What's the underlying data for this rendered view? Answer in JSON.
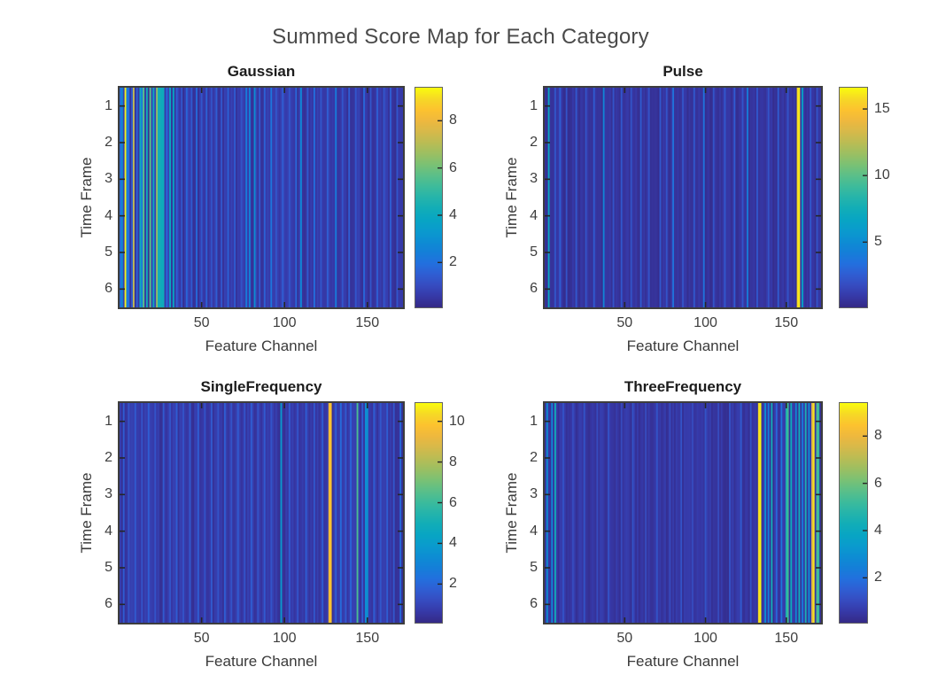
{
  "figure": {
    "title": "Summed Score Map for Each Category",
    "background": "#ffffff",
    "title_color": "#4a4a4a",
    "axis_color": "#3d3d3d",
    "tick_color": "#3e3e3e"
  },
  "axes": {
    "xlabel": "Feature Channel",
    "ylabel": "Time Frame",
    "x_ticks": [
      50,
      100,
      150
    ],
    "y_ticks": [
      1,
      2,
      3,
      4,
      5,
      6
    ],
    "n_channels": 171,
    "n_frames": 6
  },
  "colormap": {
    "name": "parula",
    "stops": [
      [
        0.0,
        "#352a87"
      ],
      [
        0.05,
        "#3639a8"
      ],
      [
        0.1,
        "#364cc0"
      ],
      [
        0.15,
        "#2f5ed3"
      ],
      [
        0.2,
        "#2270de"
      ],
      [
        0.25,
        "#147fd8"
      ],
      [
        0.3,
        "#0d8dd3"
      ],
      [
        0.35,
        "#0a9bcd"
      ],
      [
        0.4,
        "#08a5c3"
      ],
      [
        0.45,
        "#12adb7"
      ],
      [
        0.5,
        "#25b4ab"
      ],
      [
        0.55,
        "#3dbb9b"
      ],
      [
        0.6,
        "#5abf89"
      ],
      [
        0.65,
        "#7ac174"
      ],
      [
        0.7,
        "#9bbf62"
      ],
      [
        0.75,
        "#babc54"
      ],
      [
        0.8,
        "#d6b94a"
      ],
      [
        0.85,
        "#eeb83e"
      ],
      [
        0.9,
        "#fcc22f"
      ],
      [
        0.95,
        "#f6d826"
      ],
      [
        1.0,
        "#f9fb0e"
      ]
    ]
  },
  "chart_data": [
    {
      "type": "heatmap",
      "title": "Gaussian",
      "xlabel": "Feature Channel",
      "ylabel": "Time Frame",
      "x_range": [
        1,
        171
      ],
      "y_range": [
        1,
        6
      ],
      "colorbar_ticks": [
        2,
        4,
        6,
        8
      ],
      "vmin": 0.1,
      "vmax": 9.4,
      "baseline": 0.45,
      "texture": 0.55,
      "stripes": [
        [
          1,
          1.8
        ],
        [
          2,
          2.8
        ],
        [
          4,
          9.2
        ],
        [
          5,
          2.4
        ],
        [
          6,
          1.9
        ],
        [
          8,
          1.4
        ],
        [
          9,
          7.2
        ],
        [
          11,
          1.6
        ],
        [
          13,
          4.1
        ],
        [
          14,
          2.2
        ],
        [
          15,
          5.7
        ],
        [
          17,
          4.2
        ],
        [
          19,
          5.8
        ],
        [
          21,
          4.0
        ],
        [
          23,
          6.5
        ],
        [
          24,
          4.2
        ],
        [
          25,
          4.3
        ],
        [
          26,
          4.1
        ],
        [
          27,
          4.2
        ],
        [
          29,
          1.8
        ],
        [
          31,
          3.9
        ],
        [
          33,
          3.8
        ],
        [
          35,
          1.6
        ],
        [
          38,
          1.3
        ],
        [
          41,
          1.7
        ],
        [
          44,
          1.4
        ],
        [
          47,
          1.8
        ],
        [
          50,
          1.3
        ],
        [
          53,
          1.6
        ],
        [
          56,
          1.2
        ],
        [
          59,
          1.5
        ],
        [
          62,
          1.3
        ],
        [
          66,
          1.6
        ],
        [
          70,
          1.4
        ],
        [
          74,
          1.2
        ],
        [
          77,
          2.3
        ],
        [
          79,
          2.5
        ],
        [
          82,
          2.9
        ],
        [
          85,
          1.4
        ],
        [
          88,
          1.6
        ],
        [
          92,
          2.1
        ],
        [
          95,
          1.3
        ],
        [
          99,
          1.5
        ],
        [
          103,
          1.3
        ],
        [
          107,
          1.7
        ],
        [
          110,
          2.7
        ],
        [
          114,
          1.4
        ],
        [
          118,
          1.9
        ],
        [
          122,
          1.3
        ],
        [
          126,
          1.5
        ],
        [
          131,
          2.3
        ],
        [
          135,
          1.3
        ],
        [
          139,
          1.5
        ],
        [
          143,
          1.3
        ],
        [
          148,
          1.7
        ],
        [
          152,
          1.3
        ],
        [
          156,
          1.5
        ],
        [
          160,
          1.3
        ],
        [
          164,
          1.5
        ],
        [
          168,
          1.3
        ]
      ]
    },
    {
      "type": "heatmap",
      "title": "Pulse",
      "xlabel": "Feature Channel",
      "ylabel": "Time Frame",
      "x_range": [
        1,
        171
      ],
      "y_range": [
        1,
        6
      ],
      "colorbar_ticks": [
        5,
        10,
        15
      ],
      "vmin": 0.1,
      "vmax": 16.6,
      "baseline": 0.5,
      "texture": 0.7,
      "stripes": [
        [
          3,
          7.0
        ],
        [
          7,
          2.2
        ],
        [
          10,
          2.6
        ],
        [
          14,
          2.1
        ],
        [
          20,
          2.3
        ],
        [
          26,
          2.1
        ],
        [
          31,
          2.5
        ],
        [
          37,
          4.6
        ],
        [
          43,
          2.1
        ],
        [
          48,
          2.3
        ],
        [
          54,
          2.1
        ],
        [
          60,
          2.5
        ],
        [
          65,
          2.1
        ],
        [
          72,
          2.3
        ],
        [
          76,
          2.1
        ],
        [
          80,
          3.6
        ],
        [
          86,
          2.1
        ],
        [
          93,
          2.3
        ],
        [
          99,
          3.6
        ],
        [
          105,
          2.1
        ],
        [
          112,
          2.3
        ],
        [
          118,
          2.5
        ],
        [
          123,
          2.2
        ],
        [
          126,
          4.1
        ],
        [
          132,
          2.3
        ],
        [
          139,
          2.1
        ],
        [
          145,
          2.5
        ],
        [
          151,
          2.1
        ],
        [
          157,
          15.8
        ],
        [
          158,
          16.2
        ],
        [
          160,
          6.6
        ],
        [
          165,
          2.3
        ],
        [
          169,
          2.1
        ]
      ]
    },
    {
      "type": "heatmap",
      "title": "SingleFrequency",
      "xlabel": "Feature Channel",
      "ylabel": "Time Frame",
      "x_range": [
        1,
        171
      ],
      "y_range": [
        1,
        6
      ],
      "colorbar_ticks": [
        2,
        4,
        6,
        8,
        10
      ],
      "vmin": 0.1,
      "vmax": 10.9,
      "baseline": 0.5,
      "texture": 0.6,
      "stripes": [
        [
          3,
          1.7
        ],
        [
          6,
          1.4
        ],
        [
          10,
          1.6
        ],
        [
          14,
          1.4
        ],
        [
          18,
          1.7
        ],
        [
          22,
          1.4
        ],
        [
          27,
          1.6
        ],
        [
          31,
          1.4
        ],
        [
          35,
          1.7
        ],
        [
          39,
          1.4
        ],
        [
          43,
          1.6
        ],
        [
          48,
          1.7
        ],
        [
          52,
          1.4
        ],
        [
          56,
          1.6
        ],
        [
          60,
          1.4
        ],
        [
          64,
          1.7
        ],
        [
          68,
          1.4
        ],
        [
          72,
          1.6
        ],
        [
          76,
          1.4
        ],
        [
          80,
          1.7
        ],
        [
          84,
          1.4
        ],
        [
          88,
          1.6
        ],
        [
          92,
          1.4
        ],
        [
          98,
          3.9
        ],
        [
          103,
          1.6
        ],
        [
          108,
          1.4
        ],
        [
          113,
          1.7
        ],
        [
          118,
          1.5
        ],
        [
          123,
          1.7
        ],
        [
          127,
          9.5
        ],
        [
          128,
          9.9
        ],
        [
          131,
          1.7
        ],
        [
          134,
          2.1
        ],
        [
          137,
          1.6
        ],
        [
          140,
          1.9
        ],
        [
          144,
          6.3
        ],
        [
          147,
          1.7
        ],
        [
          149,
          3.3
        ],
        [
          150,
          3.5
        ],
        [
          154,
          1.7
        ],
        [
          158,
          1.5
        ],
        [
          162,
          1.7
        ],
        [
          166,
          1.5
        ],
        [
          170,
          2.1
        ]
      ]
    },
    {
      "type": "heatmap",
      "title": "ThreeFrequency",
      "xlabel": "Feature Channel",
      "ylabel": "Time Frame",
      "x_range": [
        1,
        171
      ],
      "y_range": [
        1,
        6
      ],
      "colorbar_ticks": [
        2,
        4,
        6,
        8
      ],
      "vmin": 0.1,
      "vmax": 9.4,
      "baseline": 0.4,
      "texture": 0.45,
      "stripes": [
        [
          2,
          2.9
        ],
        [
          5,
          2.7
        ],
        [
          7,
          4.3
        ],
        [
          12,
          1.2
        ],
        [
          18,
          1.0
        ],
        [
          25,
          1.2
        ],
        [
          33,
          1.0
        ],
        [
          40,
          1.2
        ],
        [
          48,
          1.0
        ],
        [
          55,
          1.2
        ],
        [
          63,
          1.0
        ],
        [
          70,
          1.2
        ],
        [
          78,
          1.0
        ],
        [
          85,
          1.2
        ],
        [
          92,
          1.0
        ],
        [
          100,
          1.2
        ],
        [
          108,
          1.0
        ],
        [
          115,
          1.2
        ],
        [
          122,
          1.4
        ],
        [
          128,
          1.2
        ],
        [
          133,
          9.0
        ],
        [
          134,
          9.3
        ],
        [
          137,
          2.9
        ],
        [
          139,
          2.3
        ],
        [
          141,
          4.3
        ],
        [
          144,
          1.7
        ],
        [
          147,
          2.1
        ],
        [
          150,
          4.5
        ],
        [
          151,
          5.3
        ],
        [
          153,
          4.1
        ],
        [
          156,
          2.7
        ],
        [
          158,
          4.3
        ],
        [
          160,
          2.3
        ],
        [
          162,
          4.5
        ],
        [
          164,
          2.9
        ],
        [
          166,
          7.8
        ],
        [
          167,
          9.1
        ],
        [
          169,
          5.6
        ],
        [
          170,
          5.0
        ]
      ]
    }
  ]
}
